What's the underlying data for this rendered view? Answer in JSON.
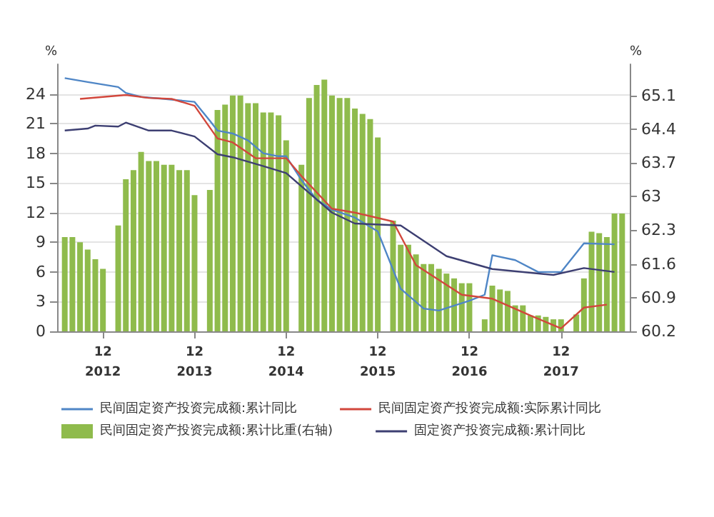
{
  "chart_data": {
    "type": "line",
    "ylabel": "%",
    "y2label": "%",
    "xlim": [
      "2012-06",
      "2018-09"
    ],
    "xticks": [
      {
        "value": "2012-12",
        "label": "12\n2012"
      },
      {
        "value": "2013-12",
        "label": "12\n2013"
      },
      {
        "value": "2014-12",
        "label": "12\n2014"
      },
      {
        "value": "2015-12",
        "label": "12\n2015"
      },
      {
        "value": "2016-12",
        "label": "12\n2016"
      },
      {
        "value": "2017-12",
        "label": "12\n2017"
      }
    ],
    "ylim": [
      0,
      27
    ],
    "yticks": [
      0,
      3,
      6,
      9,
      12,
      15,
      18,
      21,
      24
    ],
    "y2lim": [
      60.2,
      65.75
    ],
    "y2ticks": [
      60.2,
      60.9,
      61.6,
      62.3,
      63.0,
      63.7,
      64.4,
      65.1
    ],
    "grid": "y",
    "legend": "bottom",
    "marker": "none",
    "line_style": "solid",
    "series": [
      {
        "name": "民间固定资产投资完成额:累计同比",
        "color": "#4f86c6",
        "x": [
          "2012-07",
          "2012-10",
          "2013-02",
          "2013-03",
          "2013-05",
          "2013-08",
          "2013-12",
          "2014-02",
          "2014-03",
          "2014-05",
          "2014-07",
          "2014-09",
          "2014-11",
          "2014-12",
          "2015-02",
          "2015-04",
          "2015-06",
          "2015-09",
          "2015-12",
          "2016-03",
          "2016-06",
          "2016-08",
          "2016-12",
          "2017-02",
          "2017-03",
          "2017-06",
          "2017-09",
          "2017-12",
          "2018-03",
          "2018-07"
        ],
        "values": [
          25.6,
          25.2,
          24.7,
          24.1,
          23.7,
          23.5,
          23.2,
          21.3,
          20.3,
          20.0,
          19.3,
          18.0,
          17.7,
          17.7,
          15.3,
          13.3,
          12.3,
          11.5,
          10.1,
          4.3,
          2.3,
          2.1,
          3.1,
          3.7,
          7.7,
          7.2,
          6.0,
          6.0,
          8.9,
          8.8
        ]
      },
      {
        "name": "民间固定资产投资完成额:实际累计同比",
        "color": "#d2473c",
        "x": [
          "2012-09",
          "2013-03",
          "2013-06",
          "2013-09",
          "2013-12",
          "2014-03",
          "2014-05",
          "2014-08",
          "2014-12",
          "2015-02",
          "2015-06",
          "2015-09",
          "2016-02",
          "2016-05",
          "2016-11",
          "2017-03",
          "2017-08",
          "2017-12",
          "2018-03",
          "2018-06"
        ],
        "values": [
          23.5,
          23.9,
          23.6,
          23.5,
          22.8,
          19.5,
          19.1,
          17.5,
          17.5,
          15.7,
          12.4,
          12.0,
          11.1,
          6.7,
          3.7,
          3.3,
          1.6,
          0.3,
          2.4,
          2.7
        ]
      },
      {
        "name": "民间固定资产投资完成额:累计比重(右轴)",
        "type": "bar",
        "axis": "y2",
        "color": "#8fbb4c",
        "x": [
          "2012-07",
          "2012-08",
          "2012-09",
          "2012-10",
          "2012-11",
          "2012-12",
          "2013-02",
          "2013-03",
          "2013-04",
          "2013-05",
          "2013-06",
          "2013-07",
          "2013-08",
          "2013-09",
          "2013-10",
          "2013-11",
          "2013-12",
          "2014-02",
          "2014-03",
          "2014-04",
          "2014-05",
          "2014-06",
          "2014-07",
          "2014-08",
          "2014-09",
          "2014-10",
          "2014-11",
          "2014-12",
          "2015-02",
          "2015-03",
          "2015-04",
          "2015-05",
          "2015-06",
          "2015-07",
          "2015-08",
          "2015-09",
          "2015-10",
          "2015-11",
          "2015-12",
          "2016-02",
          "2016-03",
          "2016-04",
          "2016-05",
          "2016-06",
          "2016-07",
          "2016-08",
          "2016-09",
          "2016-10",
          "2016-11",
          "2016-12",
          "2017-02",
          "2017-03",
          "2017-04",
          "2017-05",
          "2017-06",
          "2017-07",
          "2017-08",
          "2017-09",
          "2017-10",
          "2017-11",
          "2017-12",
          "2018-02",
          "2018-03",
          "2018-04",
          "2018-05",
          "2018-06",
          "2018-07",
          "2018-08"
        ],
        "values": [
          62.16,
          62.16,
          62.05,
          61.9,
          61.7,
          61.5,
          62.4,
          63.36,
          63.55,
          63.93,
          63.74,
          63.74,
          63.66,
          63.66,
          63.55,
          63.55,
          63.03,
          63.14,
          64.8,
          64.91,
          65.1,
          65.1,
          64.94,
          64.94,
          64.75,
          64.75,
          64.69,
          64.17,
          63.66,
          65.05,
          65.32,
          65.43,
          65.1,
          65.05,
          65.05,
          64.83,
          64.72,
          64.61,
          64.23,
          62.5,
          62.0,
          62.0,
          61.8,
          61.6,
          61.6,
          61.5,
          61.4,
          61.3,
          61.2,
          61.2,
          60.45,
          61.15,
          61.07,
          61.04,
          60.74,
          60.74,
          60.53,
          60.53,
          60.5,
          60.45,
          60.45,
          60.55,
          61.3,
          62.27,
          62.24,
          62.16,
          62.65,
          62.65
        ]
      },
      {
        "name": "固定资产投资完成额:累计同比",
        "color": "#3d3f72",
        "x": [
          "2012-07",
          "2012-10",
          "2012-11",
          "2013-02",
          "2013-03",
          "2013-06",
          "2013-09",
          "2013-12",
          "2014-03",
          "2014-05",
          "2014-09",
          "2014-12",
          "2015-03",
          "2015-06",
          "2015-09",
          "2016-03",
          "2016-09",
          "2017-03",
          "2017-11",
          "2018-03",
          "2018-07"
        ],
        "values": [
          20.3,
          20.5,
          20.8,
          20.7,
          21.1,
          20.3,
          20.3,
          19.7,
          17.9,
          17.6,
          16.7,
          16.0,
          14.0,
          12.0,
          10.9,
          10.7,
          7.6,
          6.3,
          5.7,
          6.4,
          6.0
        ]
      }
    ]
  }
}
